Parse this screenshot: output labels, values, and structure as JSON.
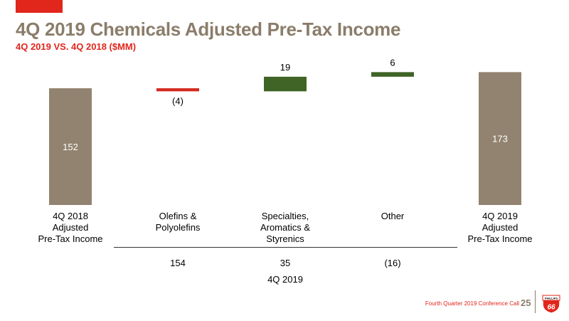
{
  "header": {
    "title": "4Q 2019 Chemicals Adjusted Pre-Tax Income",
    "subtitle": "4Q 2019 VS. 4Q 2018 ($MM)"
  },
  "footer": {
    "text": "Fourth Quarter 2019 Conference Call",
    "page_number": "25"
  },
  "logo": {
    "top_text": "PHILLIPS",
    "number": "66"
  },
  "colors": {
    "total": "#928370",
    "increase": "#3f6426",
    "decrease": "#d42b22",
    "title": "#8b7d6b",
    "accent": "#e1261c"
  },
  "chart_data": {
    "type": "waterfall",
    "title": "4Q 2019 Chemicals Adjusted Pre-Tax Income",
    "subtitle": "4Q 2019 VS. 4Q 2018 ($MM)",
    "categories": [
      [
        "4Q 2018",
        "Adjusted",
        "Pre-Tax Income"
      ],
      [
        "Olefins &",
        "Polyolefins"
      ],
      [
        "Specialties,",
        "Aromatics &",
        "Styrenics"
      ],
      [
        "Other"
      ],
      [
        "4Q 2019",
        "Adjusted",
        "Pre-Tax Income"
      ]
    ],
    "steps": [
      {
        "kind": "total",
        "value": 152,
        "label": "152"
      },
      {
        "kind": "delta",
        "value": -4,
        "label": "(4)"
      },
      {
        "kind": "delta",
        "value": 19,
        "label": "19"
      },
      {
        "kind": "delta",
        "value": 6,
        "label": "6"
      },
      {
        "kind": "total",
        "value": 173,
        "label": "173"
      }
    ],
    "quarter_values": {
      "label": "4Q 2019",
      "values": [
        "154",
        "35",
        "(16)"
      ]
    }
  }
}
